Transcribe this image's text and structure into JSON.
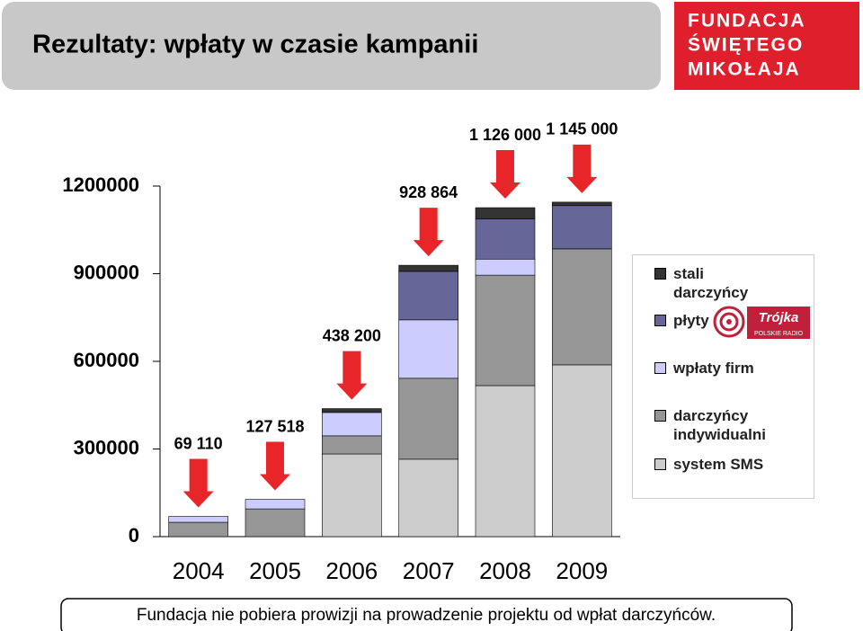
{
  "header": {
    "title": "Rezultaty: wpłaty w czasie kampanii"
  },
  "logos": {
    "fundacja": [
      "FUNDACJA",
      "ŚWIĘTEGO",
      "MIKOŁAJA"
    ],
    "trojka": "Trójka",
    "trojka_sub": "POLSKIE RADIO"
  },
  "footer": "Fundacja nie pobiera prowizji na prowadzenie projektu od wpłat darczyńców.",
  "chart_data": {
    "type": "stacked-bar",
    "categories": [
      "2004",
      "2005",
      "2006",
      "2007",
      "2008",
      "2009"
    ],
    "series": [
      {
        "name": "system SMS",
        "color": "#cccccc",
        "values": [
          0,
          0,
          283000,
          265000,
          517000,
          588000
        ]
      },
      {
        "name": "darczyńcy indywidualni",
        "color": "#969696",
        "values": [
          49110,
          95000,
          62000,
          277000,
          378000,
          397000
        ]
      },
      {
        "name": "wpłaty firm",
        "color": "#ccccff",
        "values": [
          20000,
          32518,
          80000,
          200000,
          55000,
          0
        ]
      },
      {
        "name": "płyty",
        "color": "#666699",
        "values": [
          0,
          0,
          0,
          166000,
          138000,
          148000
        ]
      },
      {
        "name": "stali darczyńcy",
        "color": "#333333",
        "values": [
          0,
          0,
          13200,
          20864,
          38000,
          12000
        ]
      }
    ],
    "totals": [
      69110,
      127518,
      438200,
      928864,
      1126000,
      1145000
    ],
    "total_labels": [
      "69 110",
      "127 518",
      "438 200",
      "928 864",
      "1 126 000",
      "1 145 000"
    ],
    "ylim": [
      0,
      1200000
    ],
    "yticks": [
      0,
      300000,
      600000,
      900000,
      1200000
    ],
    "legend": "right",
    "arrow_color": "#e8262a"
  }
}
